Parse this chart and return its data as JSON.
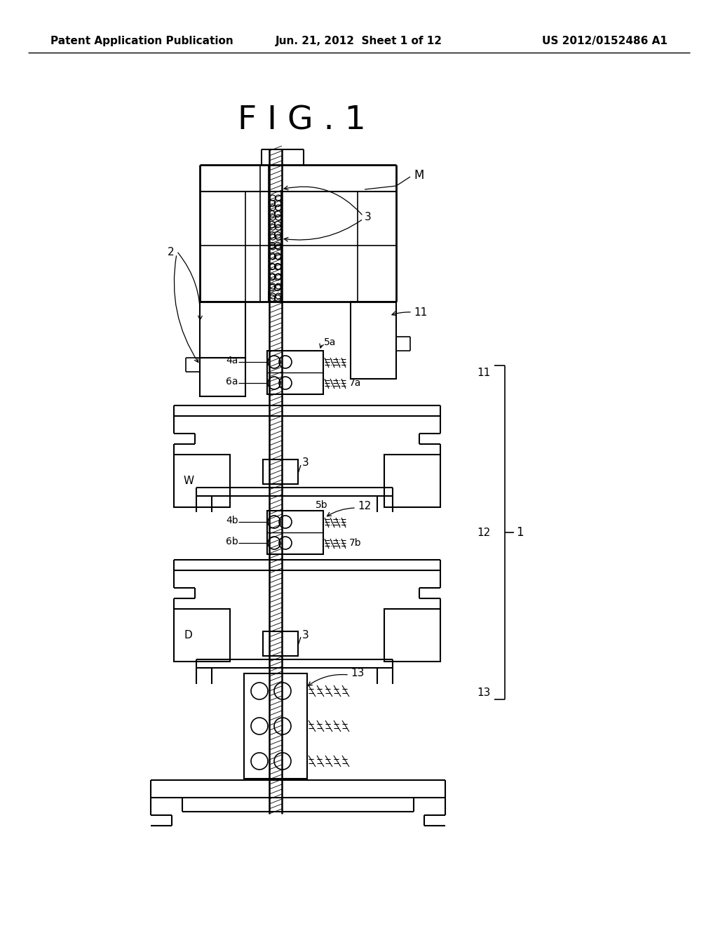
{
  "bg_color": "#ffffff",
  "line_color": "#000000",
  "header_left": "Patent Application Publication",
  "header_center": "Jun. 21, 2012  Sheet 1 of 12",
  "header_right": "US 2012/0152486 A1",
  "fig_title": "F I G . 1",
  "header_fontsize": 11,
  "fig_title_fontsize": 34
}
